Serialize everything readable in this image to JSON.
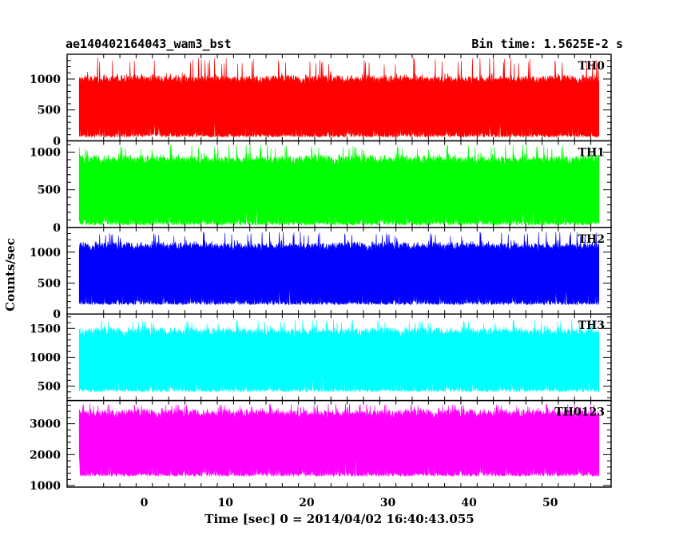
{
  "header": {
    "left": "ae140402164043_wam3_bst",
    "right": "Bin time: 1.5625E-2 s"
  },
  "chart_data": {
    "type": "line",
    "xlabel": "Time [sec] 0 = 2014/04/02 16:40:43.055",
    "ylabel": "Counts/sec",
    "xlim": [
      -9.5,
      57.5
    ],
    "x_range": [
      -8,
      56
    ],
    "x_ticks": [
      0,
      10,
      20,
      30,
      40,
      50
    ],
    "panels": [
      {
        "name": "TH0",
        "color": "#ff0000",
        "ylim": [
          0,
          1400
        ],
        "y_ticks": [
          0,
          500,
          1000
        ],
        "mean": 550,
        "low": 60,
        "high": 1050,
        "spike": 1350
      },
      {
        "name": "TH1",
        "color": "#00ff00",
        "ylim": [
          0,
          1150
        ],
        "y_ticks": [
          0,
          500,
          1000
        ],
        "mean": 480,
        "low": 30,
        "high": 950,
        "spike": 1100
      },
      {
        "name": "TH2",
        "color": "#0000ff",
        "ylim": [
          0,
          1400
        ],
        "y_ticks": [
          0,
          500,
          1000
        ],
        "mean": 680,
        "low": 150,
        "high": 1150,
        "spike": 1330
      },
      {
        "name": "TH3",
        "color": "#00ffff",
        "ylim": [
          250,
          1750
        ],
        "y_ticks": [
          500,
          1000,
          1500
        ],
        "mean": 950,
        "low": 400,
        "high": 1500,
        "spike": 1650
      },
      {
        "name": "TH0123",
        "color": "#ff00ff",
        "ylim": [
          950,
          3750
        ],
        "y_ticks": [
          1000,
          2000,
          3000
        ],
        "mean": 2400,
        "low": 1300,
        "high": 3450,
        "spike": 3650
      }
    ]
  }
}
